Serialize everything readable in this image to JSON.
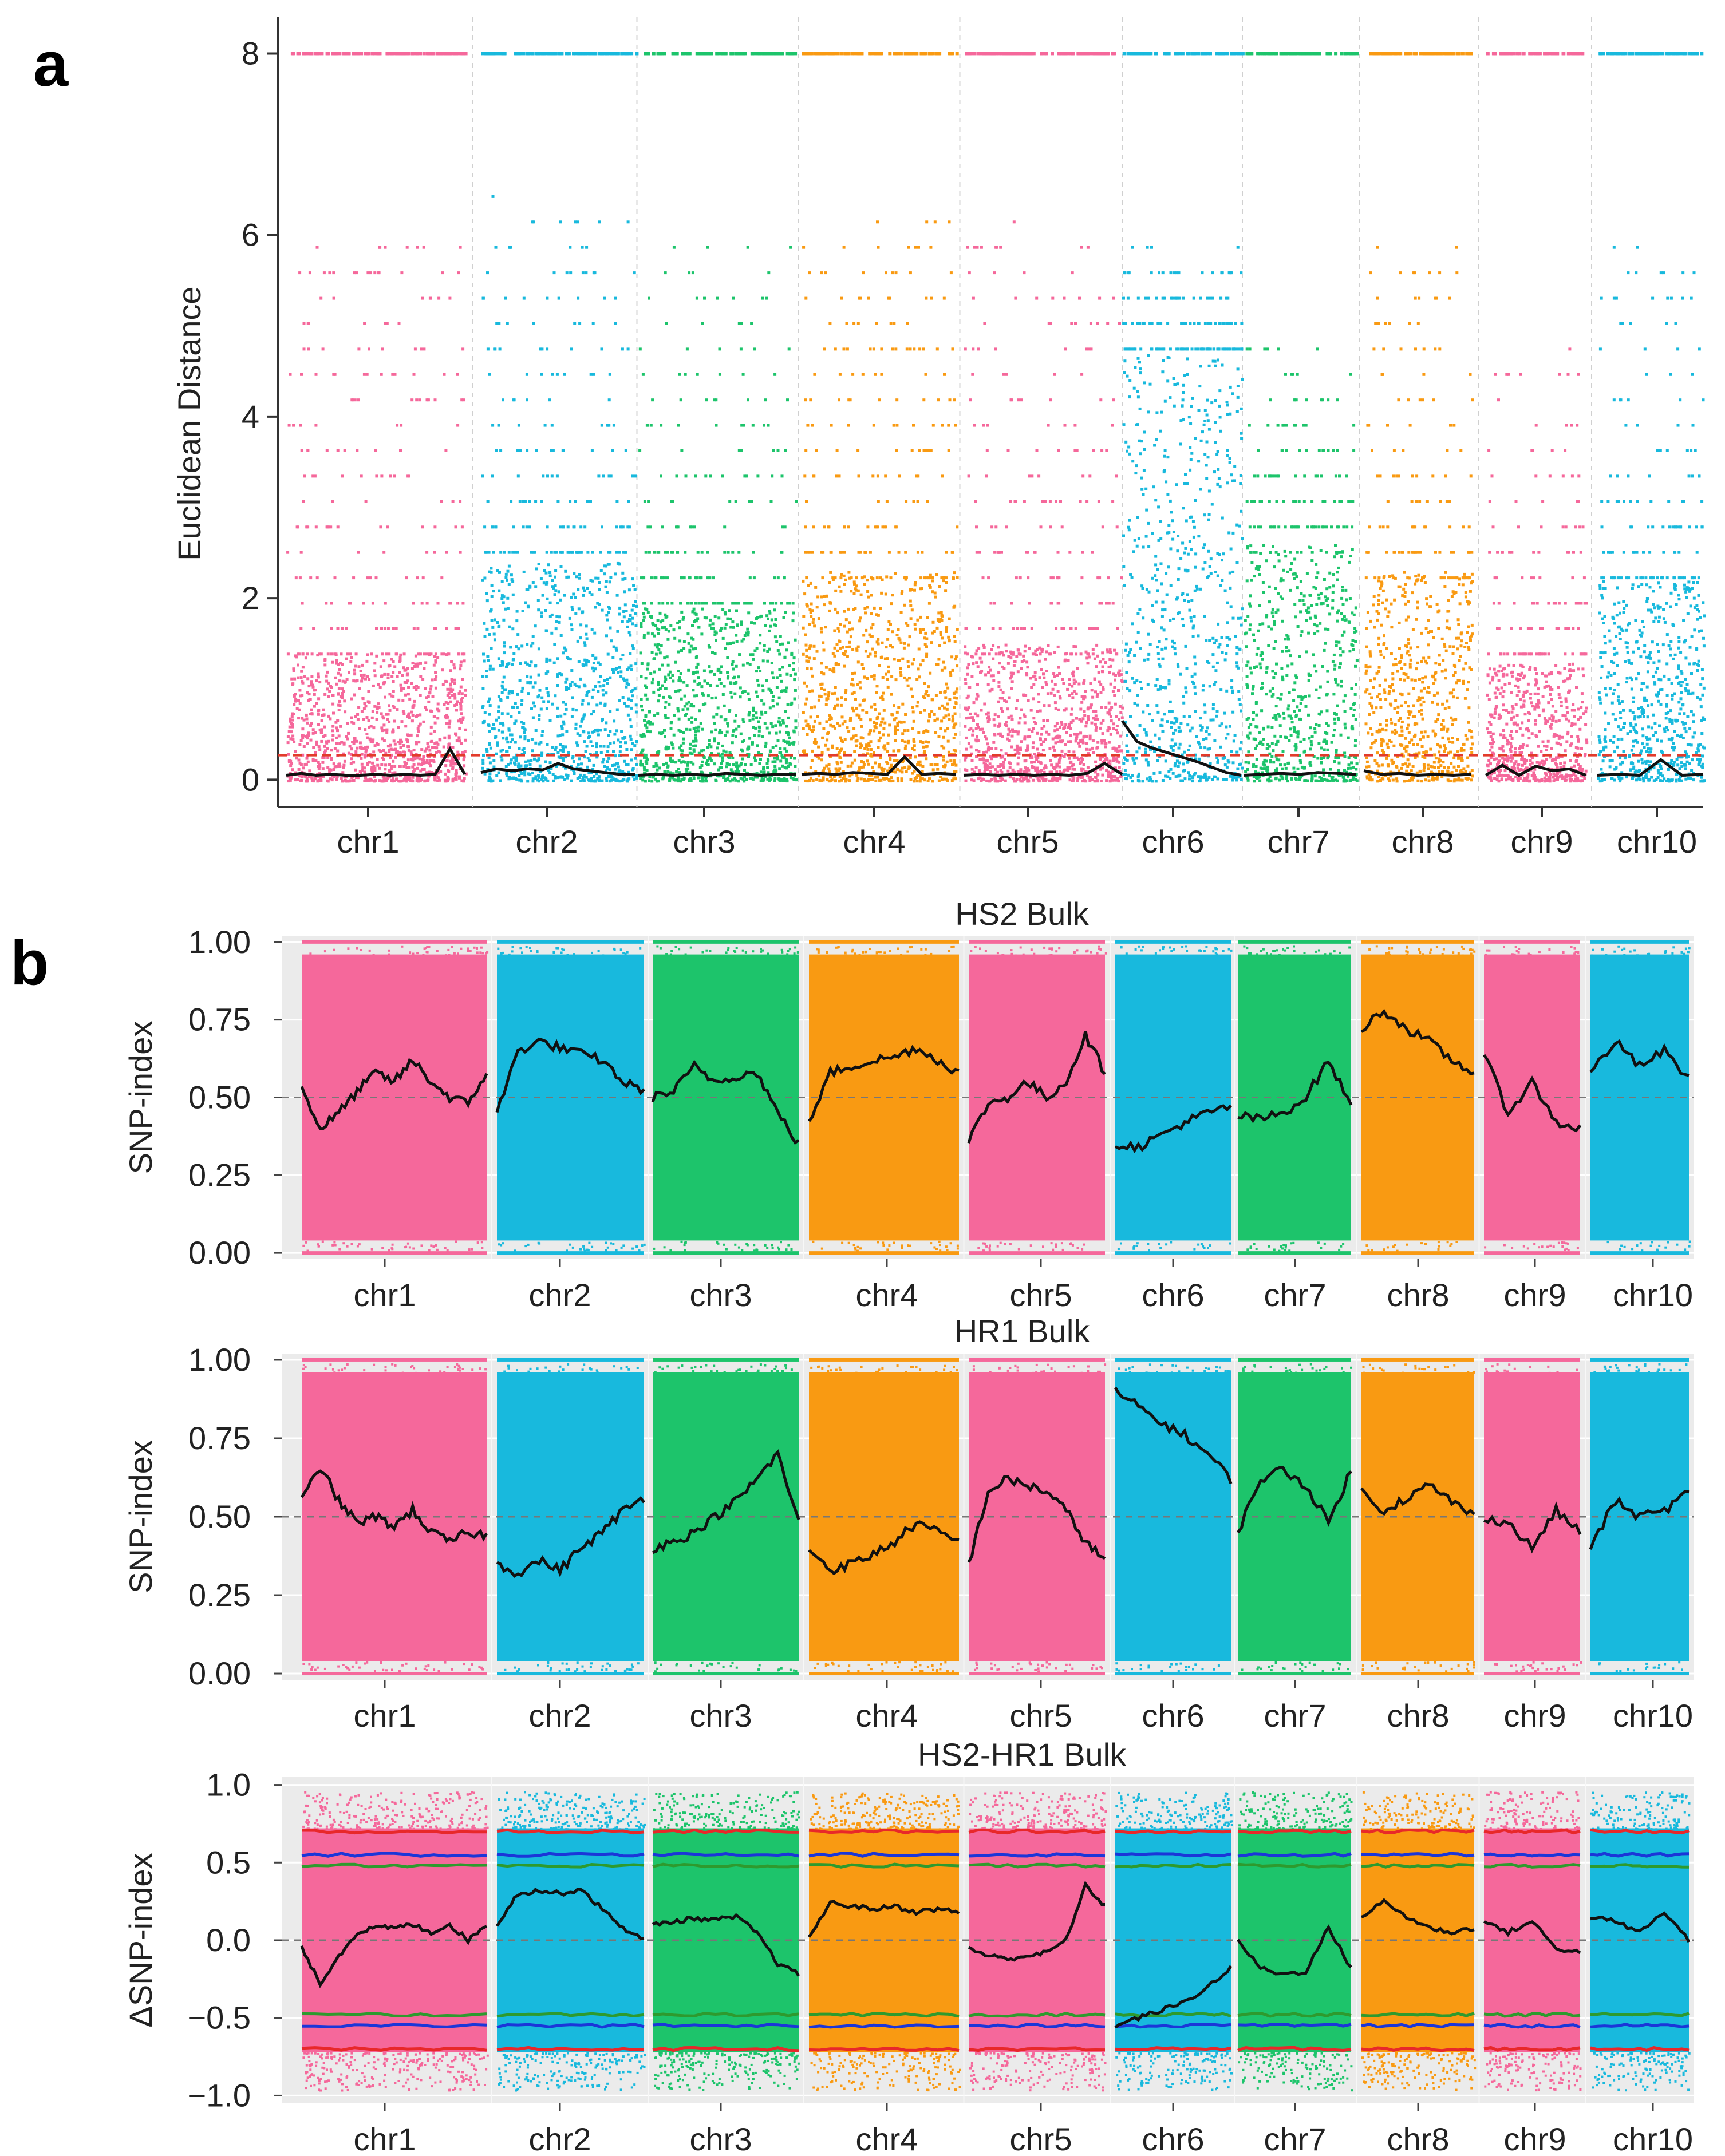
{
  "panel_labels": {
    "a": "a",
    "b": "b"
  },
  "colors": {
    "pink": "#F5689B",
    "cyan": "#18B9DD",
    "green": "#1DC46B",
    "orange": "#F99A12",
    "red": "#E8282A",
    "blue": "#1B36D8",
    "dkgreen": "#2E9A2E",
    "black": "#111111",
    "threshold": "#E23B2B",
    "panel_bg": "#EBEBEB"
  },
  "chart_data": [
    {
      "id": "panel-a",
      "type": "scatter",
      "title": "",
      "xlabel": "",
      "ylabel": "Euclidean Distance",
      "ylim": [
        -0.3,
        8.4
      ],
      "yticks": [
        0,
        2,
        4,
        6,
        8
      ],
      "threshold": 0.27,
      "grid": "vertical dashed separators",
      "chromosomes": [
        "chr1",
        "chr2",
        "chr3",
        "chr4",
        "chr5",
        "chr6",
        "chr7",
        "chr8",
        "chr9",
        "chr10"
      ],
      "chr_colors": [
        "pink",
        "cyan",
        "green",
        "orange",
        "pink",
        "cyan",
        "green",
        "orange",
        "pink",
        "cyan"
      ],
      "dense_top": [
        1.4,
        2.4,
        1.9,
        2.3,
        1.5,
        4.7,
        2.6,
        2.3,
        1.3,
        2.2
      ],
      "sparse_top": [
        5.9,
        6.4,
        6.0,
        6.1,
        6.2,
        5.8,
        4.8,
        6.0,
        4.7,
        5.8
      ],
      "series": [
        {
          "name": "chr1",
          "values": [
            0.05,
            0.07,
            0.05,
            0.06,
            0.05,
            0.05,
            0.06,
            0.05,
            0.06,
            0.05,
            0.06,
            0.34,
            0.06
          ]
        },
        {
          "name": "chr2",
          "values": [
            0.08,
            0.12,
            0.1,
            0.12,
            0.11,
            0.18,
            0.12,
            0.1,
            0.08,
            0.06,
            0.06
          ]
        },
        {
          "name": "chr3",
          "values": [
            0.05,
            0.06,
            0.05,
            0.06,
            0.05,
            0.07,
            0.06,
            0.05,
            0.06,
            0.06
          ]
        },
        {
          "name": "chr4",
          "values": [
            0.06,
            0.07,
            0.06,
            0.08,
            0.07,
            0.06,
            0.25,
            0.06,
            0.07,
            0.06
          ]
        },
        {
          "name": "chr5",
          "values": [
            0.05,
            0.06,
            0.05,
            0.06,
            0.05,
            0.06,
            0.05,
            0.07,
            0.18,
            0.06
          ]
        },
        {
          "name": "chr6",
          "values": [
            0.65,
            0.42,
            0.35,
            0.3,
            0.25,
            0.2,
            0.14,
            0.08,
            0.05
          ]
        },
        {
          "name": "chr7",
          "values": [
            0.05,
            0.06,
            0.07,
            0.06,
            0.08,
            0.07,
            0.06
          ]
        },
        {
          "name": "chr8",
          "values": [
            0.1,
            0.06,
            0.07,
            0.05,
            0.06,
            0.05,
            0.06
          ]
        },
        {
          "name": "chr9",
          "values": [
            0.05,
            0.16,
            0.05,
            0.15,
            0.1,
            0.12,
            0.05
          ]
        },
        {
          "name": "chr10",
          "values": [
            0.05,
            0.06,
            0.05,
            0.22,
            0.05,
            0.06
          ]
        }
      ]
    },
    {
      "id": "panel-b-hs2",
      "type": "scatter",
      "title": "HS2 Bulk",
      "xlabel": "",
      "ylabel": "SNP-index",
      "ylim": [
        -0.02,
        1.02
      ],
      "yticks": [
        "0.00",
        "0.25",
        "0.50",
        "0.75",
        "1.00"
      ],
      "ytick_values": [
        0,
        0.25,
        0.5,
        0.75,
        1.0
      ],
      "reference_line": 0.5,
      "chromosomes": [
        "chr1",
        "chr2",
        "chr3",
        "chr4",
        "chr5",
        "chr6",
        "chr7",
        "chr8",
        "chr9",
        "chr10"
      ],
      "series": [
        {
          "name": "chr1",
          "values": [
            0.53,
            0.4,
            0.45,
            0.52,
            0.58,
            0.55,
            0.62,
            0.55,
            0.5,
            0.48,
            0.58
          ]
        },
        {
          "name": "chr2",
          "values": [
            0.45,
            0.65,
            0.68,
            0.66,
            0.64,
            0.62,
            0.55,
            0.52
          ]
        },
        {
          "name": "chr3",
          "values": [
            0.5,
            0.52,
            0.6,
            0.55,
            0.57,
            0.58,
            0.45,
            0.35
          ]
        },
        {
          "name": "chr4",
          "values": [
            0.42,
            0.58,
            0.6,
            0.62,
            0.63,
            0.66,
            0.62,
            0.58
          ]
        },
        {
          "name": "chr5",
          "values": [
            0.36,
            0.48,
            0.5,
            0.55,
            0.5,
            0.55,
            0.7,
            0.58
          ]
        },
        {
          "name": "chr6",
          "values": [
            0.35,
            0.34,
            0.38,
            0.42,
            0.45,
            0.47
          ]
        },
        {
          "name": "chr7",
          "values": [
            0.44,
            0.43,
            0.45,
            0.5,
            0.62,
            0.47
          ]
        },
        {
          "name": "chr8",
          "values": [
            0.72,
            0.78,
            0.72,
            0.68,
            0.62,
            0.58
          ]
        },
        {
          "name": "chr9",
          "values": [
            0.64,
            0.45,
            0.55,
            0.42,
            0.4
          ]
        },
        {
          "name": "chr10",
          "values": [
            0.58,
            0.68,
            0.6,
            0.65,
            0.56
          ]
        }
      ]
    },
    {
      "id": "panel-b-hr1",
      "type": "scatter",
      "title": "HR1 Bulk",
      "xlabel": "",
      "ylabel": "SNP-index",
      "ylim": [
        -0.02,
        1.02
      ],
      "yticks": [
        "0.00",
        "0.25",
        "0.50",
        "0.75",
        "1.00"
      ],
      "ytick_values": [
        0,
        0.25,
        0.5,
        0.75,
        1.0
      ],
      "reference_line": 0.5,
      "chromosomes": [
        "chr1",
        "chr2",
        "chr3",
        "chr4",
        "chr5",
        "chr6",
        "chr7",
        "chr8",
        "chr9",
        "chr10"
      ],
      "series": [
        {
          "name": "chr1",
          "values": [
            0.55,
            0.66,
            0.55,
            0.48,
            0.5,
            0.47,
            0.52,
            0.45,
            0.42,
            0.45,
            0.44
          ]
        },
        {
          "name": "chr2",
          "values": [
            0.35,
            0.32,
            0.36,
            0.33,
            0.4,
            0.45,
            0.52,
            0.56
          ]
        },
        {
          "name": "chr3",
          "values": [
            0.4,
            0.42,
            0.45,
            0.5,
            0.55,
            0.62,
            0.7,
            0.48
          ]
        },
        {
          "name": "chr4",
          "values": [
            0.4,
            0.33,
            0.35,
            0.38,
            0.42,
            0.48,
            0.45,
            0.42
          ]
        },
        {
          "name": "chr5",
          "values": [
            0.35,
            0.58,
            0.62,
            0.6,
            0.58,
            0.52,
            0.42,
            0.36
          ]
        },
        {
          "name": "chr6",
          "values": [
            0.9,
            0.85,
            0.8,
            0.76,
            0.7,
            0.62
          ]
        },
        {
          "name": "chr7",
          "values": [
            0.45,
            0.62,
            0.65,
            0.6,
            0.48,
            0.65
          ]
        },
        {
          "name": "chr8",
          "values": [
            0.58,
            0.52,
            0.56,
            0.6,
            0.55,
            0.5
          ]
        },
        {
          "name": "chr9",
          "values": [
            0.5,
            0.48,
            0.4,
            0.52,
            0.45
          ]
        },
        {
          "name": "chr10",
          "values": [
            0.4,
            0.55,
            0.5,
            0.52,
            0.58
          ]
        }
      ]
    },
    {
      "id": "panel-b-delta",
      "type": "scatter",
      "title": "HS2-HR1 Bulk",
      "xlabel": "",
      "ylabel": "ΔSNP-index",
      "ylim": [
        -1.05,
        1.05
      ],
      "yticks": [
        "−1.0",
        "−0.5",
        "0.0",
        "0.5",
        "1.0"
      ],
      "ytick_values": [
        -1.0,
        -0.5,
        0,
        0.5,
        1.0
      ],
      "reference_line": 0.0,
      "threshold_bands": {
        "red": 0.7,
        "blue": 0.55,
        "green": 0.48
      },
      "chromosomes": [
        "chr1",
        "chr2",
        "chr3",
        "chr4",
        "chr5",
        "chr6",
        "chr7",
        "chr8",
        "chr9",
        "chr10"
      ],
      "series": [
        {
          "name": "chr1",
          "values": [
            -0.05,
            -0.28,
            -0.1,
            0.05,
            0.08,
            0.08,
            0.1,
            0.05,
            0.1,
            0.0,
            0.1
          ]
        },
        {
          "name": "chr2",
          "values": [
            0.1,
            0.3,
            0.32,
            0.3,
            0.33,
            0.2,
            0.08,
            0.0
          ]
        },
        {
          "name": "chr3",
          "values": [
            0.1,
            0.12,
            0.14,
            0.13,
            0.15,
            0.05,
            -0.15,
            -0.22
          ]
        },
        {
          "name": "chr4",
          "values": [
            0.02,
            0.24,
            0.22,
            0.2,
            0.22,
            0.18,
            0.2,
            0.18
          ]
        },
        {
          "name": "chr5",
          "values": [
            -0.05,
            -0.1,
            -0.12,
            -0.1,
            -0.08,
            0.0,
            0.35,
            0.22
          ]
        },
        {
          "name": "chr6",
          "values": [
            -0.55,
            -0.5,
            -0.45,
            -0.4,
            -0.3,
            -0.18
          ]
        },
        {
          "name": "chr7",
          "values": [
            0.0,
            -0.18,
            -0.22,
            -0.2,
            0.08,
            -0.18
          ]
        },
        {
          "name": "chr8",
          "values": [
            0.15,
            0.25,
            0.15,
            0.08,
            0.05,
            0.08
          ]
        },
        {
          "name": "chr9",
          "values": [
            0.12,
            0.05,
            0.12,
            -0.05,
            -0.08
          ]
        },
        {
          "name": "chr10",
          "values": [
            0.15,
            0.12,
            0.05,
            0.18,
            0.0
          ]
        }
      ]
    }
  ]
}
